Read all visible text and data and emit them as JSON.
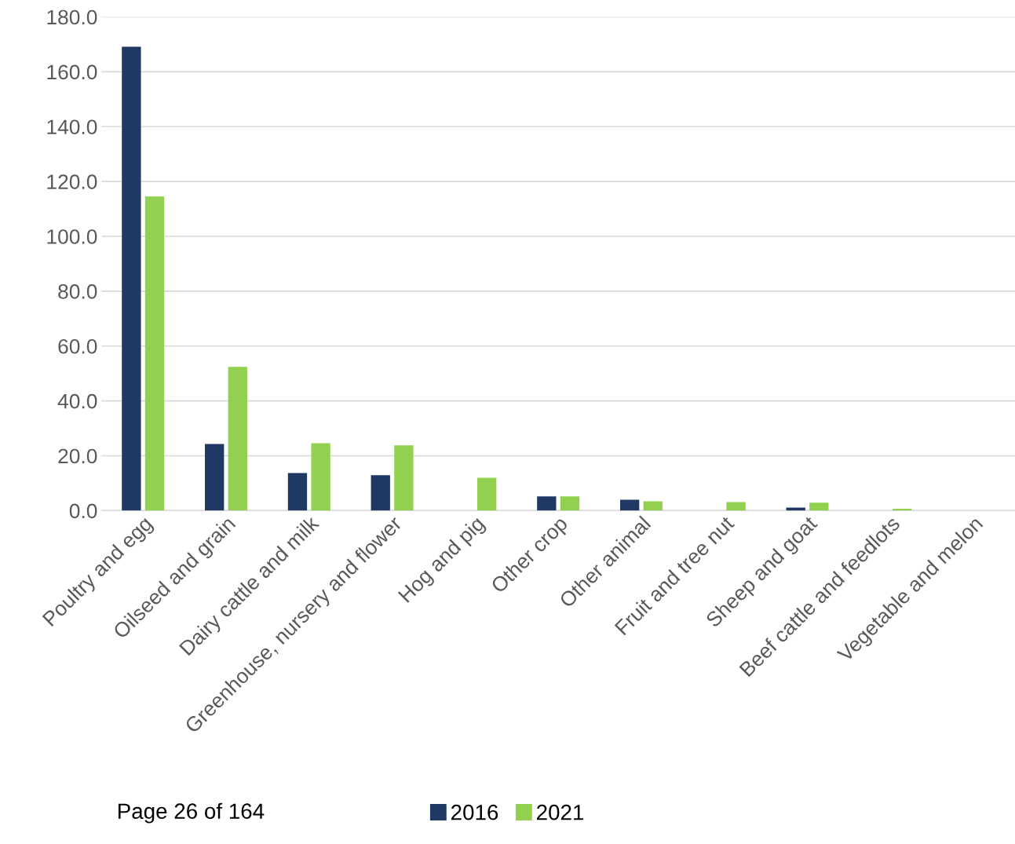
{
  "chart_data": {
    "type": "bar",
    "categories": [
      "Poultry and egg",
      "Oilseed and grain",
      "Dairy cattle and milk",
      "Greenhouse, nursery and flower",
      "Hog and pig",
      "Other crop",
      "Other animal",
      "Fruit and tree nut",
      "Sheep and goat",
      "Beef cattle and feedlots",
      "Vegetable and melon"
    ],
    "series": [
      {
        "name": "2016",
        "color": "#1f3864",
        "values": [
          169.1,
          24.3,
          13.7,
          12.9,
          0,
          5.2,
          4.0,
          0,
          1.1,
          0,
          0
        ]
      },
      {
        "name": "2021",
        "color": "#92d050",
        "values": [
          114.5,
          52.4,
          24.6,
          23.8,
          12.0,
          5.2,
          3.4,
          3.1,
          2.9,
          0.7,
          null
        ]
      }
    ],
    "ylim": [
      0,
      180
    ],
    "yticks": [
      {
        "value": 0,
        "label": "0.0"
      },
      {
        "value": 20,
        "label": "20.0"
      },
      {
        "value": 40,
        "label": "40.0"
      },
      {
        "value": 60,
        "label": "60.0"
      },
      {
        "value": 80,
        "label": "80.0"
      },
      {
        "value": 100,
        "label": "100.0"
      },
      {
        "value": 120,
        "label": "120.0"
      },
      {
        "value": 140,
        "label": "140.0"
      },
      {
        "value": 160,
        "label": "160.0"
      },
      {
        "value": 180,
        "label": "180.0"
      }
    ],
    "grid": "y",
    "legend": "bottom",
    "annotations": [
      "Page 26 of 164"
    ]
  }
}
